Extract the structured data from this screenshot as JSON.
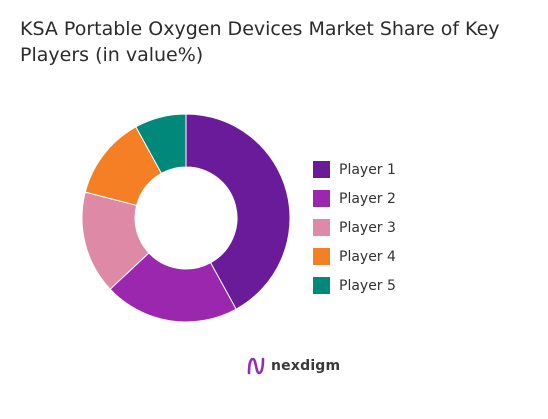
{
  "chart_data": {
    "type": "pie",
    "title": "KSA Portable Oxygen Devices Market Share of Key Players (in value%)",
    "categories": [
      "Player 1",
      "Player 2",
      "Player 3",
      "Player 4",
      "Player 5"
    ],
    "values": [
      42,
      21,
      16,
      13,
      8
    ],
    "colors": [
      "#6a1b9a",
      "#9b27af",
      "#de8aa6",
      "#f57f25",
      "#00897b"
    ],
    "legend_position": "right"
  },
  "brand": {
    "name": "nexdigm",
    "icon": "nexdigm-logo-icon",
    "color": "#8e2fb4"
  }
}
